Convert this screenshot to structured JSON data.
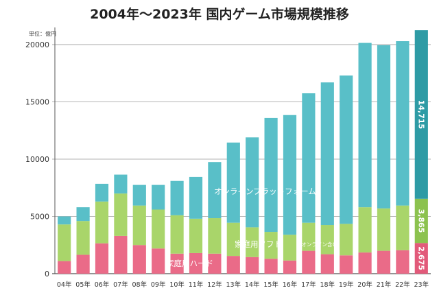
{
  "title": "2004年〜2023年 国内ゲーム市場規模推移",
  "unit": "単位：億円",
  "chart_data": {
    "type": "bar",
    "stacked": true,
    "categories": [
      "04年",
      "05年",
      "06年",
      "07年",
      "08年",
      "09年",
      "10年",
      "11年",
      "12年",
      "13年",
      "14年",
      "15年",
      "16年",
      "17年",
      "18年",
      "19年",
      "20年",
      "21年",
      "22年",
      "23年"
    ],
    "ylim": [
      0,
      21500
    ],
    "yticks": [
      0,
      5000,
      10000,
      15000,
      20000
    ],
    "grid": true,
    "series": [
      {
        "name": "家庭用ハード",
        "color": "#ea6b88",
        "values": [
          1100,
          1650,
          2650,
          3300,
          2500,
          2200,
          1750,
          1800,
          1750,
          1550,
          1450,
          1300,
          1150,
          2000,
          1700,
          1600,
          1850,
          2000,
          2050,
          2675
        ]
      },
      {
        "name": "家庭用ソフト",
        "sub": "（オンライン含む）",
        "color": "#a9d56a",
        "values": [
          3200,
          2950,
          3650,
          3700,
          3450,
          3400,
          3350,
          3000,
          3100,
          2900,
          2600,
          2350,
          2250,
          2450,
          2550,
          2750,
          3950,
          3700,
          3900,
          3865
        ]
      },
      {
        "name": "オンラインプラットフォーム",
        "color": "#59bfc8",
        "values": [
          700,
          1200,
          1550,
          1650,
          1800,
          2150,
          3000,
          3650,
          4900,
          7000,
          7850,
          9950,
          10450,
          11300,
          12450,
          12950,
          14350,
          14250,
          14350,
          14715
        ]
      }
    ],
    "value_labels": [
      "2,675",
      "3,865",
      "14,715"
    ]
  }
}
